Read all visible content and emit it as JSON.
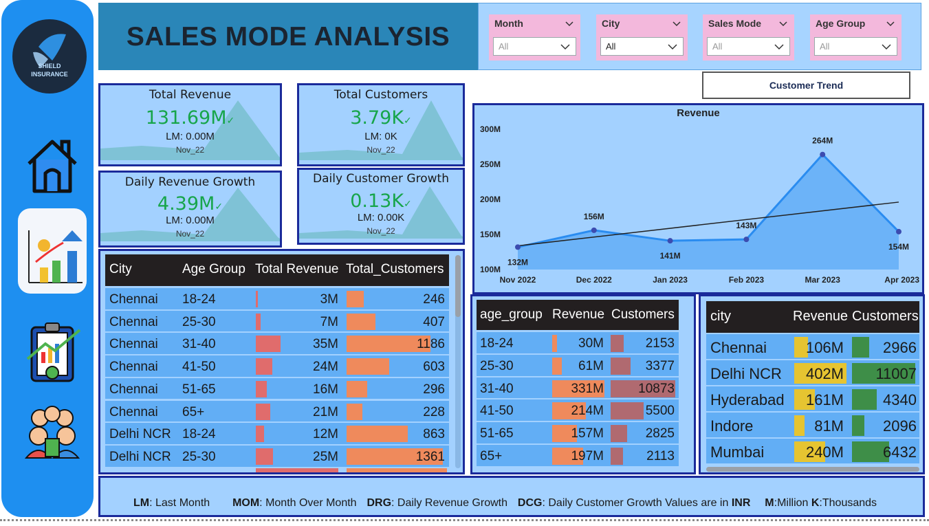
{
  "brand": {
    "logo_line1": "SHIELD",
    "logo_line2": "INSURANCE"
  },
  "nav": [
    {
      "name": "home",
      "icon": "home-icon"
    },
    {
      "name": "sales-growth",
      "icon": "growth-chart-icon",
      "active": true
    },
    {
      "name": "report",
      "icon": "clipboard-report-icon"
    },
    {
      "name": "customers",
      "icon": "people-icon"
    }
  ],
  "header": {
    "title": "SALES MODE ANALYSIS"
  },
  "filters": [
    {
      "label": "Month",
      "value": "All"
    },
    {
      "label": "City",
      "value": "All"
    },
    {
      "label": "Sales Mode",
      "value": "All"
    },
    {
      "label": "Age Group",
      "value": "All"
    }
  ],
  "trend_button": "Customer Trend",
  "kpis": {
    "total_revenue": {
      "title": "Total Revenue",
      "value": "131.69M",
      "check": "✓",
      "lm": "LM: 0.00M",
      "month": "Nov_22"
    },
    "total_customers": {
      "title": "Total Customers",
      "value": "3.79K",
      "check": "✓",
      "lm": "LM: 0K",
      "month": "Nov_22"
    },
    "daily_revenue_growth": {
      "title": "Daily Revenue Growth",
      "value": "4.39M",
      "check": "✓",
      "lm": "LM: 0.00M",
      "month": "Nov_22"
    },
    "daily_customer_growth": {
      "title": "Daily Customer Growth",
      "value": "0.13K",
      "check": "✓",
      "lm": "LM: 0.00K",
      "month": "Nov_22"
    }
  },
  "chart_data": {
    "type": "area",
    "title": "Revenue",
    "categories": [
      "Nov 2022",
      "Dec 2022",
      "Jan 2023",
      "Feb 2023",
      "Mar 2023",
      "Apr 2023"
    ],
    "values": [
      132,
      156,
      141,
      143,
      264,
      154
    ],
    "data_labels": [
      "132M",
      "156M",
      "141M",
      "143M",
      "264M",
      "154M"
    ],
    "y_ticks": [
      "100M",
      "150M",
      "200M",
      "250M",
      "300M"
    ],
    "ylim": [
      100,
      300
    ],
    "trendline": true,
    "grid": false,
    "colors": {
      "area": "#5aa8f5",
      "line": "#2a8cf0",
      "marker": "#3c4cb0",
      "trend": "#222222"
    }
  },
  "city_age_table": {
    "headers": [
      "City",
      "Age Group",
      "Total Revenue",
      "Total_Customers"
    ],
    "rows": [
      {
        "city": "Chennai",
        "age": "18-24",
        "revenue": "3M",
        "rev": 3,
        "customers": "246",
        "cust": 246
      },
      {
        "city": "Chennai",
        "age": "25-30",
        "revenue": "7M",
        "rev": 7,
        "customers": "407",
        "cust": 407
      },
      {
        "city": "Chennai",
        "age": "31-40",
        "revenue": "35M",
        "rev": 35,
        "customers": "1186",
        "cust": 1186
      },
      {
        "city": "Chennai",
        "age": "41-50",
        "revenue": "24M",
        "rev": 24,
        "customers": "603",
        "cust": 603
      },
      {
        "city": "Chennai",
        "age": "51-65",
        "revenue": "16M",
        "rev": 16,
        "customers": "296",
        "cust": 296
      },
      {
        "city": "Chennai",
        "age": "65+",
        "revenue": "21M",
        "rev": 21,
        "customers": "228",
        "cust": 228
      },
      {
        "city": "Delhi NCR",
        "age": "18-24",
        "revenue": "12M",
        "rev": 12,
        "customers": "863",
        "cust": 863
      },
      {
        "city": "Delhi NCR",
        "age": "25-30",
        "revenue": "25M",
        "rev": 25,
        "customers": "1361",
        "cust": 1361
      }
    ],
    "rev_max": 120,
    "cust_max": 1420,
    "colors": {
      "rev_bar": "#e06c6c",
      "cust_bar": "#ef8a5c"
    }
  },
  "age_table": {
    "headers": [
      "age_group",
      "Revenue",
      "Customers"
    ],
    "rows": [
      {
        "age": "18-24",
        "revenue": "30M",
        "rev": 30,
        "customers": "2153",
        "cust": 2153
      },
      {
        "age": "25-30",
        "revenue": "61M",
        "rev": 61,
        "customers": "3377",
        "cust": 3377
      },
      {
        "age": "31-40",
        "revenue": "331M",
        "rev": 331,
        "customers": "10873",
        "cust": 10873
      },
      {
        "age": "41-50",
        "revenue": "214M",
        "rev": 214,
        "customers": "5500",
        "cust": 5500
      },
      {
        "age": "51-65",
        "revenue": "157M",
        "rev": 157,
        "customers": "2825",
        "cust": 2825
      },
      {
        "age": "65+",
        "revenue": "197M",
        "rev": 197,
        "customers": "2113",
        "cust": 2113
      }
    ],
    "rev_max": 331,
    "cust_max": 10873,
    "colors": {
      "rev_bar": "#ef8a5c",
      "cust_bar": "#b06a70"
    }
  },
  "city_table": {
    "headers": [
      "city",
      "Revenue",
      "Customers"
    ],
    "rows": [
      {
        "city": "Chennai",
        "revenue": "106M",
        "rev": 106,
        "customers": "2966",
        "cust": 2966
      },
      {
        "city": "Delhi NCR",
        "revenue": "402M",
        "rev": 402,
        "customers": "11007",
        "cust": 11007
      },
      {
        "city": "Hyderabad",
        "revenue": "161M",
        "rev": 161,
        "customers": "4340",
        "cust": 4340
      },
      {
        "city": "Indore",
        "revenue": "81M",
        "rev": 81,
        "customers": "2096",
        "cust": 2096
      },
      {
        "city": "Mumbai",
        "revenue": "240M",
        "rev": 240,
        "customers": "6432",
        "cust": 6432
      }
    ],
    "rev_max": 402,
    "cust_max": 11007,
    "colors": {
      "rev_bar": "#e6c431",
      "cust_bar": "#3e8e48"
    }
  },
  "footer": {
    "lm_key": "LM",
    "lm_text": ": Last Month",
    "mom_key": "MOM",
    "mom_text": ": Month Over Month",
    "drg_key": "DRG",
    "drg_text": ": Daily Revenue Growth",
    "dcg_key": "DCG",
    "dcg_text": ": Daily Customer Growth  Values are in ",
    "inr_key": "INR",
    "m_key": "M",
    "m_text": ":Million ",
    "k_key": "K",
    "k_text": ":Thousands"
  }
}
